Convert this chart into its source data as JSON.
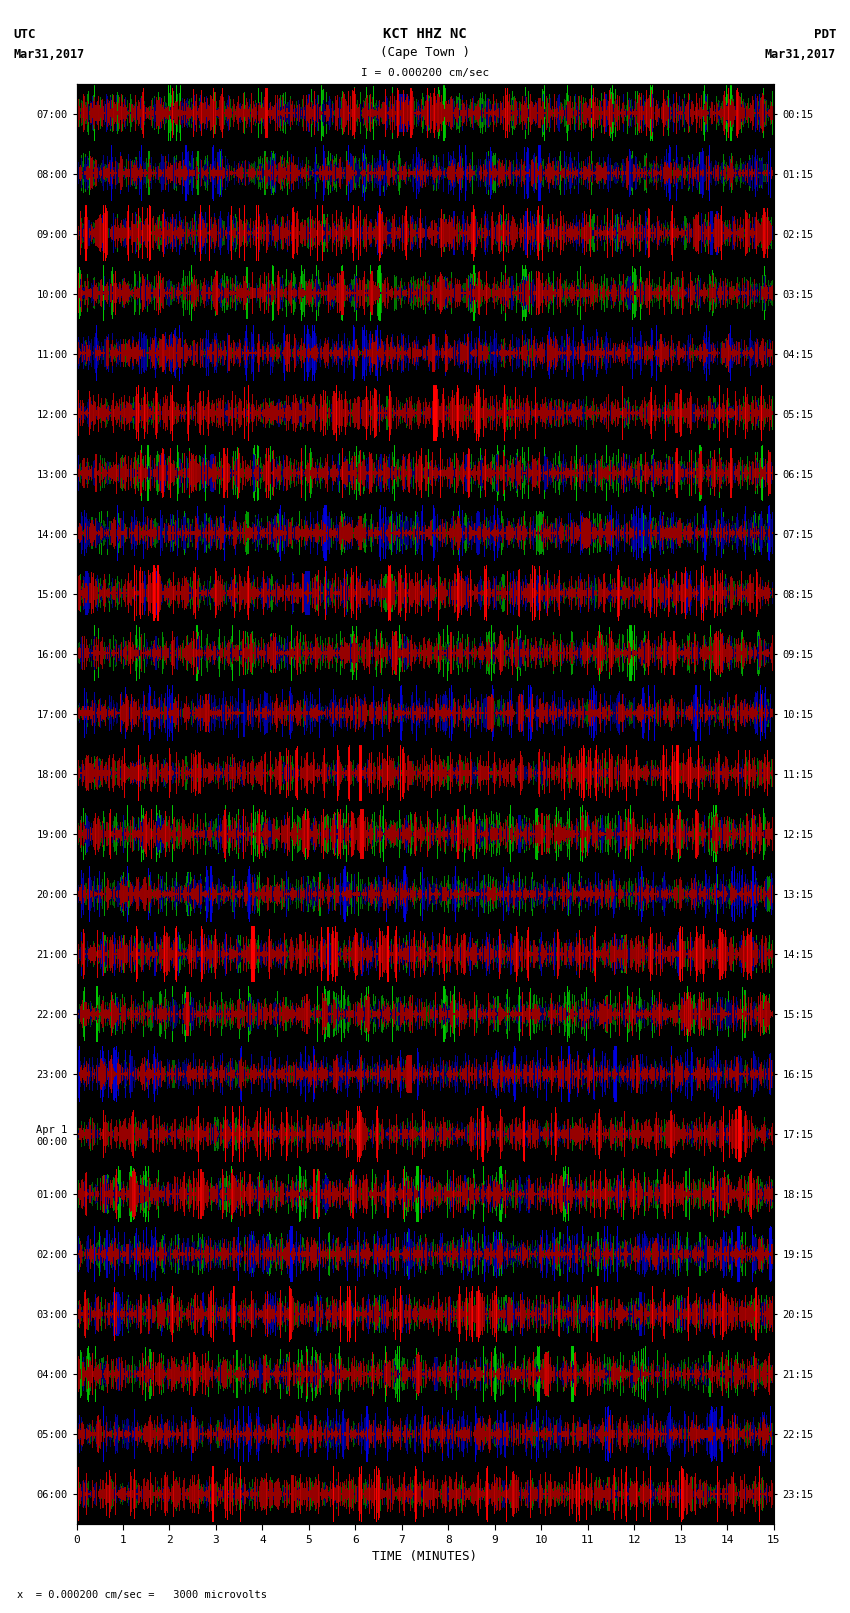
{
  "title_line1": "KCT HHZ NC",
  "title_line2": "(Cape Town )",
  "scale_label": "I = 0.000200 cm/sec",
  "left_label_top": "UTC",
  "left_label_date": "Mar31,2017",
  "right_label_top": "PDT",
  "right_label_date": "Mar31,2017",
  "bottom_label": "TIME (MINUTES)",
  "bottom_note": "x  = 0.000200 cm/sec =   3000 microvolts",
  "utc_times": [
    "07:00",
    "08:00",
    "09:00",
    "10:00",
    "11:00",
    "12:00",
    "13:00",
    "14:00",
    "15:00",
    "16:00",
    "17:00",
    "18:00",
    "19:00",
    "20:00",
    "21:00",
    "22:00",
    "23:00",
    "Apr 1\n00:00",
    "01:00",
    "02:00",
    "03:00",
    "04:00",
    "05:00",
    "06:00"
  ],
  "pdt_times": [
    "00:15",
    "01:15",
    "02:15",
    "03:15",
    "04:15",
    "05:15",
    "06:15",
    "07:15",
    "08:15",
    "09:15",
    "10:15",
    "11:15",
    "12:15",
    "13:15",
    "14:15",
    "15:15",
    "16:15",
    "17:15",
    "18:15",
    "19:15",
    "20:15",
    "21:15",
    "22:15",
    "23:15"
  ],
  "num_rows": 24,
  "minutes_per_row": 15,
  "samples_per_minute": 100,
  "background_color": "#ffffff",
  "x_ticks": [
    0,
    1,
    2,
    3,
    4,
    5,
    6,
    7,
    8,
    9,
    10,
    11,
    12,
    13,
    14,
    15
  ],
  "figsize": [
    8.5,
    16.13
  ],
  "dpi": 100
}
